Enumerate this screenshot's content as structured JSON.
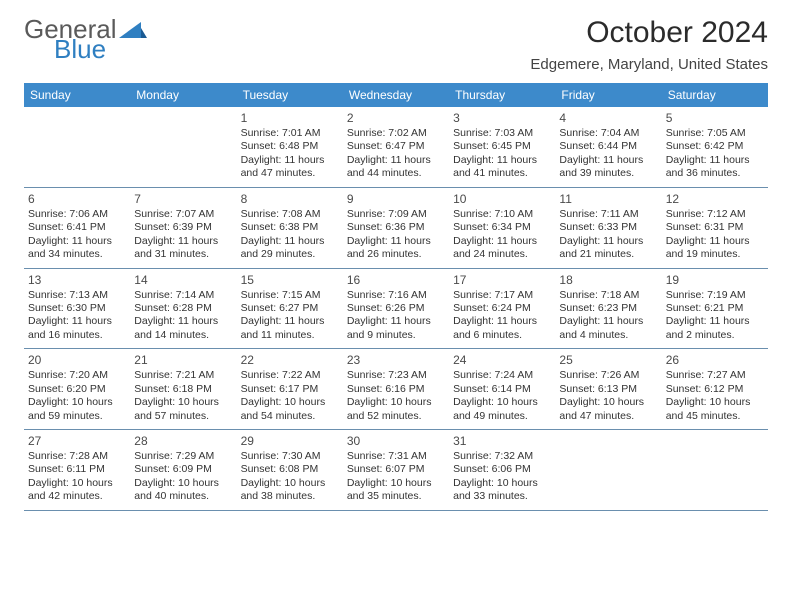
{
  "brand": {
    "general": "General",
    "blue": "Blue"
  },
  "title": "October 2024",
  "location": "Edgemere, Maryland, United States",
  "colors": {
    "header_bg": "#3d8acb",
    "header_text": "#ffffff",
    "row_border": "#6a8fae",
    "logo_blue": "#2f7fc1",
    "logo_gray": "#5a5a5a"
  },
  "dow": [
    "Sunday",
    "Monday",
    "Tuesday",
    "Wednesday",
    "Thursday",
    "Friday",
    "Saturday"
  ],
  "weeks": [
    [
      null,
      null,
      {
        "n": "1",
        "sr": "Sunrise: 7:01 AM",
        "ss": "Sunset: 6:48 PM",
        "d1": "Daylight: 11 hours",
        "d2": "and 47 minutes."
      },
      {
        "n": "2",
        "sr": "Sunrise: 7:02 AM",
        "ss": "Sunset: 6:47 PM",
        "d1": "Daylight: 11 hours",
        "d2": "and 44 minutes."
      },
      {
        "n": "3",
        "sr": "Sunrise: 7:03 AM",
        "ss": "Sunset: 6:45 PM",
        "d1": "Daylight: 11 hours",
        "d2": "and 41 minutes."
      },
      {
        "n": "4",
        "sr": "Sunrise: 7:04 AM",
        "ss": "Sunset: 6:44 PM",
        "d1": "Daylight: 11 hours",
        "d2": "and 39 minutes."
      },
      {
        "n": "5",
        "sr": "Sunrise: 7:05 AM",
        "ss": "Sunset: 6:42 PM",
        "d1": "Daylight: 11 hours",
        "d2": "and 36 minutes."
      }
    ],
    [
      {
        "n": "6",
        "sr": "Sunrise: 7:06 AM",
        "ss": "Sunset: 6:41 PM",
        "d1": "Daylight: 11 hours",
        "d2": "and 34 minutes."
      },
      {
        "n": "7",
        "sr": "Sunrise: 7:07 AM",
        "ss": "Sunset: 6:39 PM",
        "d1": "Daylight: 11 hours",
        "d2": "and 31 minutes."
      },
      {
        "n": "8",
        "sr": "Sunrise: 7:08 AM",
        "ss": "Sunset: 6:38 PM",
        "d1": "Daylight: 11 hours",
        "d2": "and 29 minutes."
      },
      {
        "n": "9",
        "sr": "Sunrise: 7:09 AM",
        "ss": "Sunset: 6:36 PM",
        "d1": "Daylight: 11 hours",
        "d2": "and 26 minutes."
      },
      {
        "n": "10",
        "sr": "Sunrise: 7:10 AM",
        "ss": "Sunset: 6:34 PM",
        "d1": "Daylight: 11 hours",
        "d2": "and 24 minutes."
      },
      {
        "n": "11",
        "sr": "Sunrise: 7:11 AM",
        "ss": "Sunset: 6:33 PM",
        "d1": "Daylight: 11 hours",
        "d2": "and 21 minutes."
      },
      {
        "n": "12",
        "sr": "Sunrise: 7:12 AM",
        "ss": "Sunset: 6:31 PM",
        "d1": "Daylight: 11 hours",
        "d2": "and 19 minutes."
      }
    ],
    [
      {
        "n": "13",
        "sr": "Sunrise: 7:13 AM",
        "ss": "Sunset: 6:30 PM",
        "d1": "Daylight: 11 hours",
        "d2": "and 16 minutes."
      },
      {
        "n": "14",
        "sr": "Sunrise: 7:14 AM",
        "ss": "Sunset: 6:28 PM",
        "d1": "Daylight: 11 hours",
        "d2": "and 14 minutes."
      },
      {
        "n": "15",
        "sr": "Sunrise: 7:15 AM",
        "ss": "Sunset: 6:27 PM",
        "d1": "Daylight: 11 hours",
        "d2": "and 11 minutes."
      },
      {
        "n": "16",
        "sr": "Sunrise: 7:16 AM",
        "ss": "Sunset: 6:26 PM",
        "d1": "Daylight: 11 hours",
        "d2": "and 9 minutes."
      },
      {
        "n": "17",
        "sr": "Sunrise: 7:17 AM",
        "ss": "Sunset: 6:24 PM",
        "d1": "Daylight: 11 hours",
        "d2": "and 6 minutes."
      },
      {
        "n": "18",
        "sr": "Sunrise: 7:18 AM",
        "ss": "Sunset: 6:23 PM",
        "d1": "Daylight: 11 hours",
        "d2": "and 4 minutes."
      },
      {
        "n": "19",
        "sr": "Sunrise: 7:19 AM",
        "ss": "Sunset: 6:21 PM",
        "d1": "Daylight: 11 hours",
        "d2": "and 2 minutes."
      }
    ],
    [
      {
        "n": "20",
        "sr": "Sunrise: 7:20 AM",
        "ss": "Sunset: 6:20 PM",
        "d1": "Daylight: 10 hours",
        "d2": "and 59 minutes."
      },
      {
        "n": "21",
        "sr": "Sunrise: 7:21 AM",
        "ss": "Sunset: 6:18 PM",
        "d1": "Daylight: 10 hours",
        "d2": "and 57 minutes."
      },
      {
        "n": "22",
        "sr": "Sunrise: 7:22 AM",
        "ss": "Sunset: 6:17 PM",
        "d1": "Daylight: 10 hours",
        "d2": "and 54 minutes."
      },
      {
        "n": "23",
        "sr": "Sunrise: 7:23 AM",
        "ss": "Sunset: 6:16 PM",
        "d1": "Daylight: 10 hours",
        "d2": "and 52 minutes."
      },
      {
        "n": "24",
        "sr": "Sunrise: 7:24 AM",
        "ss": "Sunset: 6:14 PM",
        "d1": "Daylight: 10 hours",
        "d2": "and 49 minutes."
      },
      {
        "n": "25",
        "sr": "Sunrise: 7:26 AM",
        "ss": "Sunset: 6:13 PM",
        "d1": "Daylight: 10 hours",
        "d2": "and 47 minutes."
      },
      {
        "n": "26",
        "sr": "Sunrise: 7:27 AM",
        "ss": "Sunset: 6:12 PM",
        "d1": "Daylight: 10 hours",
        "d2": "and 45 minutes."
      }
    ],
    [
      {
        "n": "27",
        "sr": "Sunrise: 7:28 AM",
        "ss": "Sunset: 6:11 PM",
        "d1": "Daylight: 10 hours",
        "d2": "and 42 minutes."
      },
      {
        "n": "28",
        "sr": "Sunrise: 7:29 AM",
        "ss": "Sunset: 6:09 PM",
        "d1": "Daylight: 10 hours",
        "d2": "and 40 minutes."
      },
      {
        "n": "29",
        "sr": "Sunrise: 7:30 AM",
        "ss": "Sunset: 6:08 PM",
        "d1": "Daylight: 10 hours",
        "d2": "and 38 minutes."
      },
      {
        "n": "30",
        "sr": "Sunrise: 7:31 AM",
        "ss": "Sunset: 6:07 PM",
        "d1": "Daylight: 10 hours",
        "d2": "and 35 minutes."
      },
      {
        "n": "31",
        "sr": "Sunrise: 7:32 AM",
        "ss": "Sunset: 6:06 PM",
        "d1": "Daylight: 10 hours",
        "d2": "and 33 minutes."
      },
      null,
      null
    ]
  ]
}
